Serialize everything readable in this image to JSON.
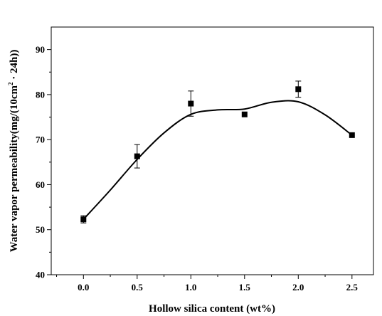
{
  "chart_data": {
    "type": "scatter",
    "xlabel": "Hollow silica content (wt%)",
    "ylabel": "Water  vapor  permeability(mg/(10cm",
    "ylabel_superscript": "2",
    "ylabel_suffix": " · 24h))",
    "xlim": [
      -0.3,
      2.7
    ],
    "ylim": [
      40,
      95
    ],
    "x_ticks": [
      0.0,
      0.5,
      1.0,
      1.5,
      2.0,
      2.5
    ],
    "x_tick_labels": [
      "0.0",
      "0.5",
      "1.0",
      "1.5",
      "2.0",
      "2.5"
    ],
    "y_ticks": [
      40,
      50,
      60,
      70,
      80,
      90
    ],
    "y_tick_labels": [
      "40",
      "50",
      "60",
      "70",
      "80",
      "90"
    ],
    "grid": false,
    "series": [
      {
        "marker": "square",
        "color": "#000000",
        "points": [
          {
            "x": 0.0,
            "y": 52.3,
            "err": 0.8
          },
          {
            "x": 0.5,
            "y": 66.3,
            "err": 2.6
          },
          {
            "x": 1.0,
            "y": 78.0,
            "err": 2.8
          },
          {
            "x": 1.5,
            "y": 75.6,
            "err": 0
          },
          {
            "x": 2.0,
            "y": 81.2,
            "err": 1.8
          },
          {
            "x": 2.5,
            "y": 71.0,
            "err": 0
          }
        ]
      }
    ],
    "fit_curve": {
      "color": "#000000",
      "points": [
        [
          0.0,
          52.3
        ],
        [
          0.25,
          58.8
        ],
        [
          0.5,
          65.6
        ],
        [
          0.75,
          71.5
        ],
        [
          1.0,
          75.6
        ],
        [
          1.25,
          76.6
        ],
        [
          1.5,
          76.8
        ],
        [
          1.75,
          78.3
        ],
        [
          2.0,
          78.4
        ],
        [
          2.25,
          75.5
        ],
        [
          2.5,
          71.0
        ]
      ]
    }
  }
}
